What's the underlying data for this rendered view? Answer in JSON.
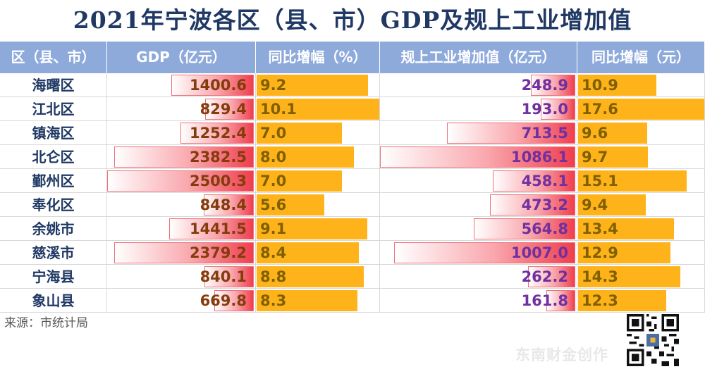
{
  "title": "2021年宁波各区（县、市）GDP及规上工业增加值",
  "source": "来源：市统计局",
  "watermark": "东南财金创作",
  "colors": {
    "header": "#8eaadb",
    "name_text": "#1f3864",
    "gdp_text": "#843c0c",
    "ind_text": "#7030a0",
    "bar_orange": "#ffb31a",
    "bar_red": "#ef3e4e"
  },
  "columns": [
    "区（县、市）",
    "GDP（亿元）",
    "同比增幅（%）",
    "规上工业增加值（亿元）",
    "同比增幅（元）"
  ],
  "chart_data": {
    "type": "table",
    "title": "2021年宁波各区（县、市）GDP及规上工业增加值",
    "columns": [
      "区（县、市）",
      "GDP（亿元）",
      "同比增幅（%）",
      "规上工业增加值（亿元）",
      "同比增幅（元）"
    ],
    "rows": [
      {
        "district": "海曙区",
        "gdp": "1400.6",
        "gdp_growth": "9.2",
        "industry": "248.9",
        "industry_growth": "10.9"
      },
      {
        "district": "江北区",
        "gdp": "829.4",
        "gdp_growth": "10.1",
        "industry": "193.0",
        "industry_growth": "17.6"
      },
      {
        "district": "镇海区",
        "gdp": "1252.4",
        "gdp_growth": "7.0",
        "industry": "713.5",
        "industry_growth": "9.6"
      },
      {
        "district": "北仑区",
        "gdp": "2382.5",
        "gdp_growth": "8.0",
        "industry": "1086.1",
        "industry_growth": "9.7"
      },
      {
        "district": "鄞州区",
        "gdp": "2500.3",
        "gdp_growth": "7.0",
        "industry": "458.1",
        "industry_growth": "15.1"
      },
      {
        "district": "奉化区",
        "gdp": "848.4",
        "gdp_growth": "5.6",
        "industry": "473.2",
        "industry_growth": "9.4"
      },
      {
        "district": "余姚市",
        "gdp": "1441.5",
        "gdp_growth": "9.1",
        "industry": "564.8",
        "industry_growth": "13.4"
      },
      {
        "district": "慈溪市",
        "gdp": "2379.2",
        "gdp_growth": "8.4",
        "industry": "1007.0",
        "industry_growth": "12.9"
      },
      {
        "district": "宁海县",
        "gdp": "840.1",
        "gdp_growth": "8.8",
        "industry": "262.2",
        "industry_growth": "14.3"
      },
      {
        "district": "象山县",
        "gdp": "669.8",
        "gdp_growth": "8.3",
        "industry": "161.8",
        "industry_growth": "12.3"
      }
    ]
  }
}
